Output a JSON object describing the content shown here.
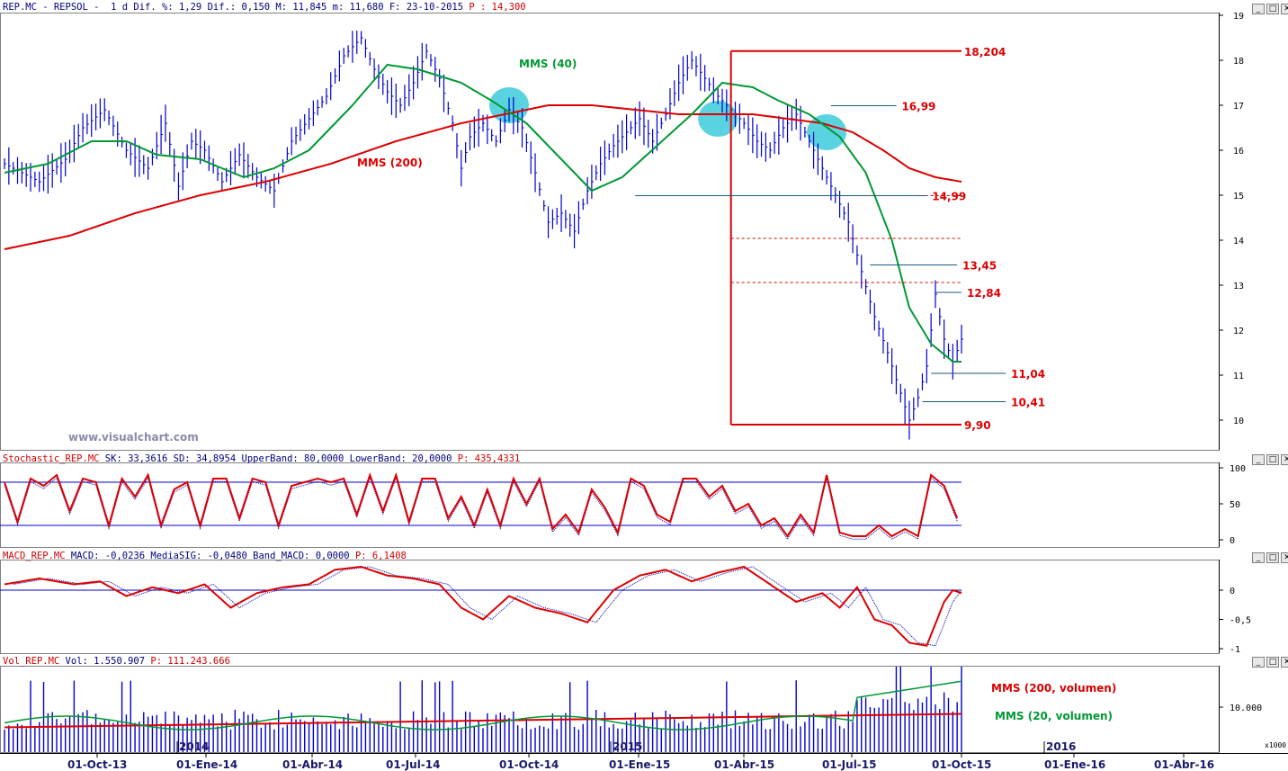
{
  "header": {
    "main_info": "REP.MC - REPSOL -  1 d Dif. %: 1,29 Dif.: 0,150 M: 11,845 m: 11,680 F: 23-10-2015",
    "main_price": "P : 14,300",
    "stoch_name": "Stochastic_REP.MC",
    "stoch_info": "SK: 33,3616 SD: 34,8954 UpperBand: 80,0000 LowerBand: 20,0000",
    "stoch_price": "P: 435,4331",
    "macd_name": "MACD_REP.MC",
    "macd_info": "MACD: -0,0236 MediaSIG: -0,0480 Band_MACD: 0,0000",
    "macd_price": "P: 6,1408",
    "vol_name": "Vol_REP.MC",
    "vol_info": "Vol: 1.550.907",
    "vol_price": "P: 111.243.666"
  },
  "watermark": "www.visualchart.com",
  "window_buttons": [
    "_",
    "□",
    "✕"
  ],
  "chart_data": {
    "type": "line",
    "title": "REP.MC - REPSOL",
    "x_ticks": [
      "01-Oct-13",
      "01-Ene-14",
      "01-Abr-14",
      "01-Jul-14",
      "01-Oct-14",
      "01-Ene-15",
      "01-Abr-15",
      "01-Jul-15",
      "01-Oct-15",
      "01-Ene-16",
      "01-Abr-16"
    ],
    "year_labels": [
      "2014",
      "2015",
      "2016"
    ],
    "price_axis": {
      "ticks": [
        "10",
        "11",
        "12",
        "13",
        "14",
        "15",
        "16",
        "17",
        "18",
        "19"
      ],
      "ylim": [
        9.2,
        19
      ]
    },
    "price_path": [
      [
        0,
        15.7
      ],
      [
        8,
        15.3
      ],
      [
        14,
        15.8
      ],
      [
        18,
        16.5
      ],
      [
        23,
        16.9
      ],
      [
        28,
        16.0
      ],
      [
        33,
        15.6
      ],
      [
        37,
        16.6
      ],
      [
        40,
        15.2
      ],
      [
        43,
        16.2
      ],
      [
        46,
        16.0
      ],
      [
        50,
        15.3
      ],
      [
        54,
        15.9
      ],
      [
        58,
        15.4
      ],
      [
        62,
        15.1
      ],
      [
        66,
        16.2
      ],
      [
        70,
        16.7
      ],
      [
        74,
        17.2
      ],
      [
        78,
        18.1
      ],
      [
        82,
        18.5
      ],
      [
        85,
        17.8
      ],
      [
        88,
        17.3
      ],
      [
        91,
        17.0
      ],
      [
        94,
        17.5
      ],
      [
        97,
        18.2
      ],
      [
        100,
        17.6
      ],
      [
        103,
        16.6
      ],
      [
        105,
        15.6
      ],
      [
        107,
        16.3
      ],
      [
        110,
        16.6
      ],
      [
        113,
        16.2
      ],
      [
        116,
        16.9
      ],
      [
        119,
        16.5
      ],
      [
        122,
        15.5
      ],
      [
        125,
        14.4
      ],
      [
        128,
        14.6
      ],
      [
        131,
        14.2
      ],
      [
        134,
        15.1
      ],
      [
        137,
        15.7
      ],
      [
        140,
        16.1
      ],
      [
        143,
        16.4
      ],
      [
        146,
        16.7
      ],
      [
        149,
        16.2
      ],
      [
        152,
        16.8
      ],
      [
        155,
        17.5
      ],
      [
        158,
        18.0
      ],
      [
        161,
        17.6
      ],
      [
        164,
        17.2
      ],
      [
        167,
        16.9
      ],
      [
        170,
        16.6
      ],
      [
        173,
        16.2
      ],
      [
        176,
        16.0
      ],
      [
        179,
        16.5
      ],
      [
        182,
        16.8
      ],
      [
        185,
        16.2
      ],
      [
        188,
        15.6
      ],
      [
        191,
        15.0
      ],
      [
        194,
        14.4
      ],
      [
        197,
        13.3
      ],
      [
        200,
        12.3
      ],
      [
        203,
        11.5
      ],
      [
        206,
        10.6
      ],
      [
        208,
        10.0
      ],
      [
        210,
        10.5
      ],
      [
        212,
        11.2
      ],
      [
        214,
        12.8
      ],
      [
        216,
        11.8
      ],
      [
        218,
        11.3
      ],
      [
        220,
        11.8
      ]
    ],
    "mms40_path": [
      [
        0,
        15.5
      ],
      [
        10,
        15.7
      ],
      [
        20,
        16.2
      ],
      [
        28,
        16.2
      ],
      [
        35,
        15.9
      ],
      [
        45,
        15.8
      ],
      [
        55,
        15.4
      ],
      [
        62,
        15.6
      ],
      [
        70,
        16.0
      ],
      [
        80,
        17.0
      ],
      [
        88,
        17.9
      ],
      [
        95,
        17.8
      ],
      [
        105,
        17.5
      ],
      [
        112,
        17.1
      ],
      [
        120,
        16.6
      ],
      [
        128,
        15.8
      ],
      [
        135,
        15.1
      ],
      [
        142,
        15.4
      ],
      [
        150,
        16.1
      ],
      [
        158,
        16.8
      ],
      [
        165,
        17.5
      ],
      [
        172,
        17.4
      ],
      [
        178,
        17.1
      ],
      [
        185,
        16.8
      ],
      [
        192,
        16.3
      ],
      [
        198,
        15.5
      ],
      [
        204,
        14.0
      ],
      [
        208,
        12.5
      ],
      [
        213,
        11.7
      ],
      [
        218,
        11.3
      ],
      [
        220,
        11.3
      ]
    ],
    "mms200_path": [
      [
        0,
        13.8
      ],
      [
        15,
        14.1
      ],
      [
        30,
        14.6
      ],
      [
        45,
        15.0
      ],
      [
        60,
        15.3
      ],
      [
        75,
        15.7
      ],
      [
        90,
        16.2
      ],
      [
        105,
        16.6
      ],
      [
        115,
        16.8
      ],
      [
        125,
        17.0
      ],
      [
        135,
        17.0
      ],
      [
        145,
        16.9
      ],
      [
        155,
        16.8
      ],
      [
        165,
        16.8
      ],
      [
        172,
        16.8
      ],
      [
        180,
        16.7
      ],
      [
        188,
        16.6
      ],
      [
        195,
        16.4
      ],
      [
        202,
        16.0
      ],
      [
        208,
        15.6
      ],
      [
        214,
        15.4
      ],
      [
        220,
        15.3
      ]
    ],
    "levels": [
      {
        "label": "18,204",
        "value": 18.204
      },
      {
        "label": "16,99",
        "value": 16.99
      },
      {
        "label": "14,99",
        "value": 14.99
      },
      {
        "label": "13,45",
        "value": 13.45
      },
      {
        "label": "12,84",
        "value": 12.84
      },
      {
        "label": "11,04",
        "value": 11.04
      },
      {
        "label": "10,41",
        "value": 10.41
      },
      {
        "label": "9,90",
        "value": 9.9
      }
    ],
    "fib_levels": [
      14.99,
      14.04,
      13.06
    ],
    "series_labels": {
      "mms40": "MMS (40)",
      "mms200": "MMS (200)",
      "vol200": "MMS (200, volumen)",
      "vol20": "MMS (20, volumen)"
    },
    "colors": {
      "price": "#0000cc",
      "mms40": "#009933",
      "mms200": "#dd0000",
      "level": "#dd0000",
      "highlight": "#22c4d4"
    },
    "stoch_axis": {
      "ticks": [
        "100",
        "50",
        "0"
      ],
      "bands": [
        80,
        20
      ]
    },
    "stoch_path": [
      [
        0,
        80
      ],
      [
        3,
        25
      ],
      [
        6,
        85
      ],
      [
        9,
        75
      ],
      [
        12,
        90
      ],
      [
        15,
        40
      ],
      [
        18,
        85
      ],
      [
        21,
        80
      ],
      [
        24,
        20
      ],
      [
        27,
        85
      ],
      [
        30,
        60
      ],
      [
        33,
        90
      ],
      [
        36,
        20
      ],
      [
        39,
        70
      ],
      [
        42,
        80
      ],
      [
        45,
        20
      ],
      [
        48,
        85
      ],
      [
        51,
        85
      ],
      [
        54,
        30
      ],
      [
        57,
        85
      ],
      [
        60,
        80
      ],
      [
        63,
        20
      ],
      [
        66,
        75
      ],
      [
        69,
        80
      ],
      [
        72,
        85
      ],
      [
        75,
        80
      ],
      [
        78,
        85
      ],
      [
        81,
        35
      ],
      [
        84,
        90
      ],
      [
        87,
        40
      ],
      [
        90,
        90
      ],
      [
        93,
        25
      ],
      [
        96,
        85
      ],
      [
        99,
        85
      ],
      [
        102,
        30
      ],
      [
        105,
        60
      ],
      [
        108,
        20
      ],
      [
        111,
        70
      ],
      [
        114,
        20
      ],
      [
        117,
        85
      ],
      [
        120,
        50
      ],
      [
        123,
        85
      ],
      [
        126,
        15
      ],
      [
        129,
        35
      ],
      [
        132,
        10
      ],
      [
        135,
        70
      ],
      [
        138,
        45
      ],
      [
        141,
        10
      ],
      [
        144,
        85
      ],
      [
        147,
        75
      ],
      [
        150,
        35
      ],
      [
        153,
        25
      ],
      [
        156,
        85
      ],
      [
        159,
        85
      ],
      [
        162,
        60
      ],
      [
        165,
        75
      ],
      [
        168,
        40
      ],
      [
        171,
        50
      ],
      [
        174,
        20
      ],
      [
        177,
        30
      ],
      [
        180,
        5
      ],
      [
        183,
        35
      ],
      [
        186,
        10
      ],
      [
        189,
        90
      ],
      [
        192,
        10
      ],
      [
        195,
        5
      ],
      [
        198,
        5
      ],
      [
        201,
        20
      ],
      [
        204,
        5
      ],
      [
        207,
        15
      ],
      [
        210,
        5
      ],
      [
        213,
        90
      ],
      [
        216,
        75
      ],
      [
        219,
        30
      ]
    ],
    "macd_axis": {
      "ticks": [
        "0",
        "-0,5",
        "-1"
      ]
    },
    "macd_path": [
      [
        0,
        0.1
      ],
      [
        8,
        0.2
      ],
      [
        16,
        0.1
      ],
      [
        22,
        0.15
      ],
      [
        28,
        -0.1
      ],
      [
        34,
        0.05
      ],
      [
        40,
        -0.05
      ],
      [
        46,
        0.1
      ],
      [
        52,
        -0.3
      ],
      [
        58,
        -0.05
      ],
      [
        64,
        0.05
      ],
      [
        70,
        0.1
      ],
      [
        76,
        0.35
      ],
      [
        82,
        0.4
      ],
      [
        88,
        0.25
      ],
      [
        94,
        0.2
      ],
      [
        100,
        0.1
      ],
      [
        105,
        -0.3
      ],
      [
        110,
        -0.5
      ],
      [
        116,
        -0.1
      ],
      [
        122,
        -0.3
      ],
      [
        128,
        -0.4
      ],
      [
        134,
        -0.55
      ],
      [
        140,
        0.0
      ],
      [
        146,
        0.25
      ],
      [
        152,
        0.35
      ],
      [
        158,
        0.15
      ],
      [
        164,
        0.3
      ],
      [
        170,
        0.4
      ],
      [
        176,
        0.1
      ],
      [
        182,
        -0.2
      ],
      [
        188,
        -0.05
      ],
      [
        192,
        -0.3
      ],
      [
        196,
        0.05
      ],
      [
        200,
        -0.5
      ],
      [
        204,
        -0.6
      ],
      [
        208,
        -0.9
      ],
      [
        212,
        -0.95
      ],
      [
        216,
        -0.2
      ],
      [
        218,
        0.0
      ],
      [
        220,
        -0.05
      ]
    ],
    "vol_axis": {
      "ticks": [
        "10.000"
      ],
      "multiplier": "x1000"
    }
  }
}
